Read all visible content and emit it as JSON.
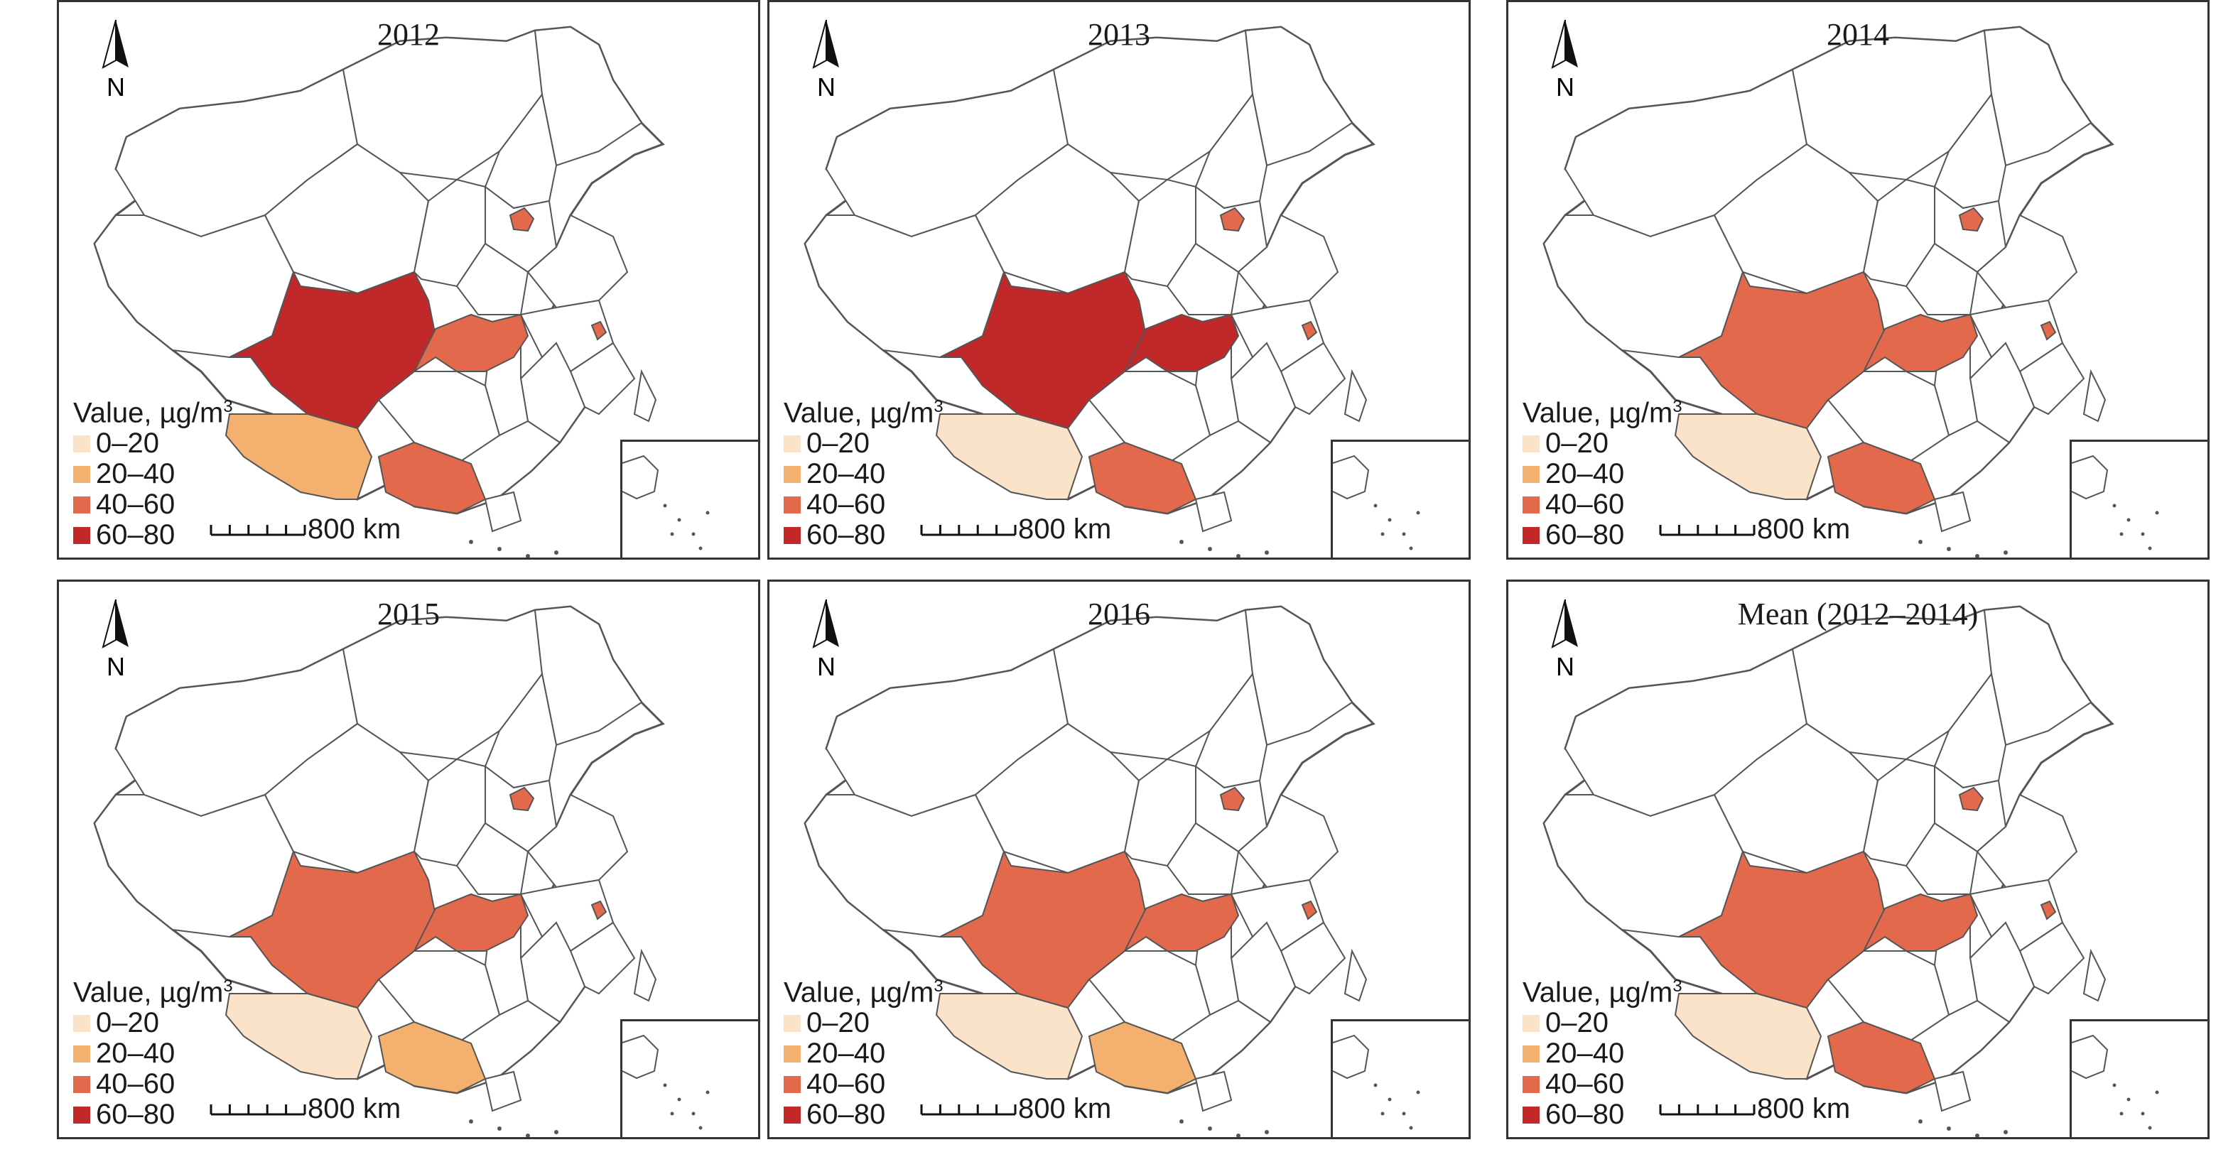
{
  "legend": {
    "title_text": "Value, µg/m",
    "title_sup": "3",
    "classes": [
      {
        "label": "0–20",
        "color": "#fbe3c9"
      },
      {
        "label": "20–40",
        "color": "#f3b06e"
      },
      {
        "label": "40–60",
        "color": "#e3694c"
      },
      {
        "label": "60–80",
        "color": "#c0282a"
      }
    ]
  },
  "north_label": "N",
  "scale_label": "800 km",
  "panels": [
    {
      "title": "2012",
      "regions": {
        "sichuan": 3,
        "hubei": 2,
        "yunnan": 1,
        "guangxi": 2,
        "beijing": 2,
        "shanghai": 2
      }
    },
    {
      "title": "2013",
      "regions": {
        "sichuan": 3,
        "hubei": 3,
        "yunnan": 0,
        "guangxi": 2,
        "beijing": 2,
        "shanghai": 2
      }
    },
    {
      "title": "2014",
      "regions": {
        "sichuan": 2,
        "hubei": 2,
        "yunnan": 0,
        "guangxi": 2,
        "beijing": 2,
        "shanghai": 2
      }
    },
    {
      "title": "2015",
      "regions": {
        "sichuan": 2,
        "hubei": 2,
        "yunnan": 0,
        "guangxi": 1,
        "beijing": 2,
        "shanghai": 2
      }
    },
    {
      "title": "2016",
      "regions": {
        "sichuan": 2,
        "hubei": 2,
        "yunnan": 0,
        "guangxi": 1,
        "beijing": 2,
        "shanghai": 2
      }
    },
    {
      "title": "Mean (2012–2014)",
      "regions": {
        "sichuan": 2,
        "hubei": 2,
        "yunnan": 0,
        "guangxi": 2,
        "beijing": 2,
        "shanghai": 2
      }
    }
  ]
}
